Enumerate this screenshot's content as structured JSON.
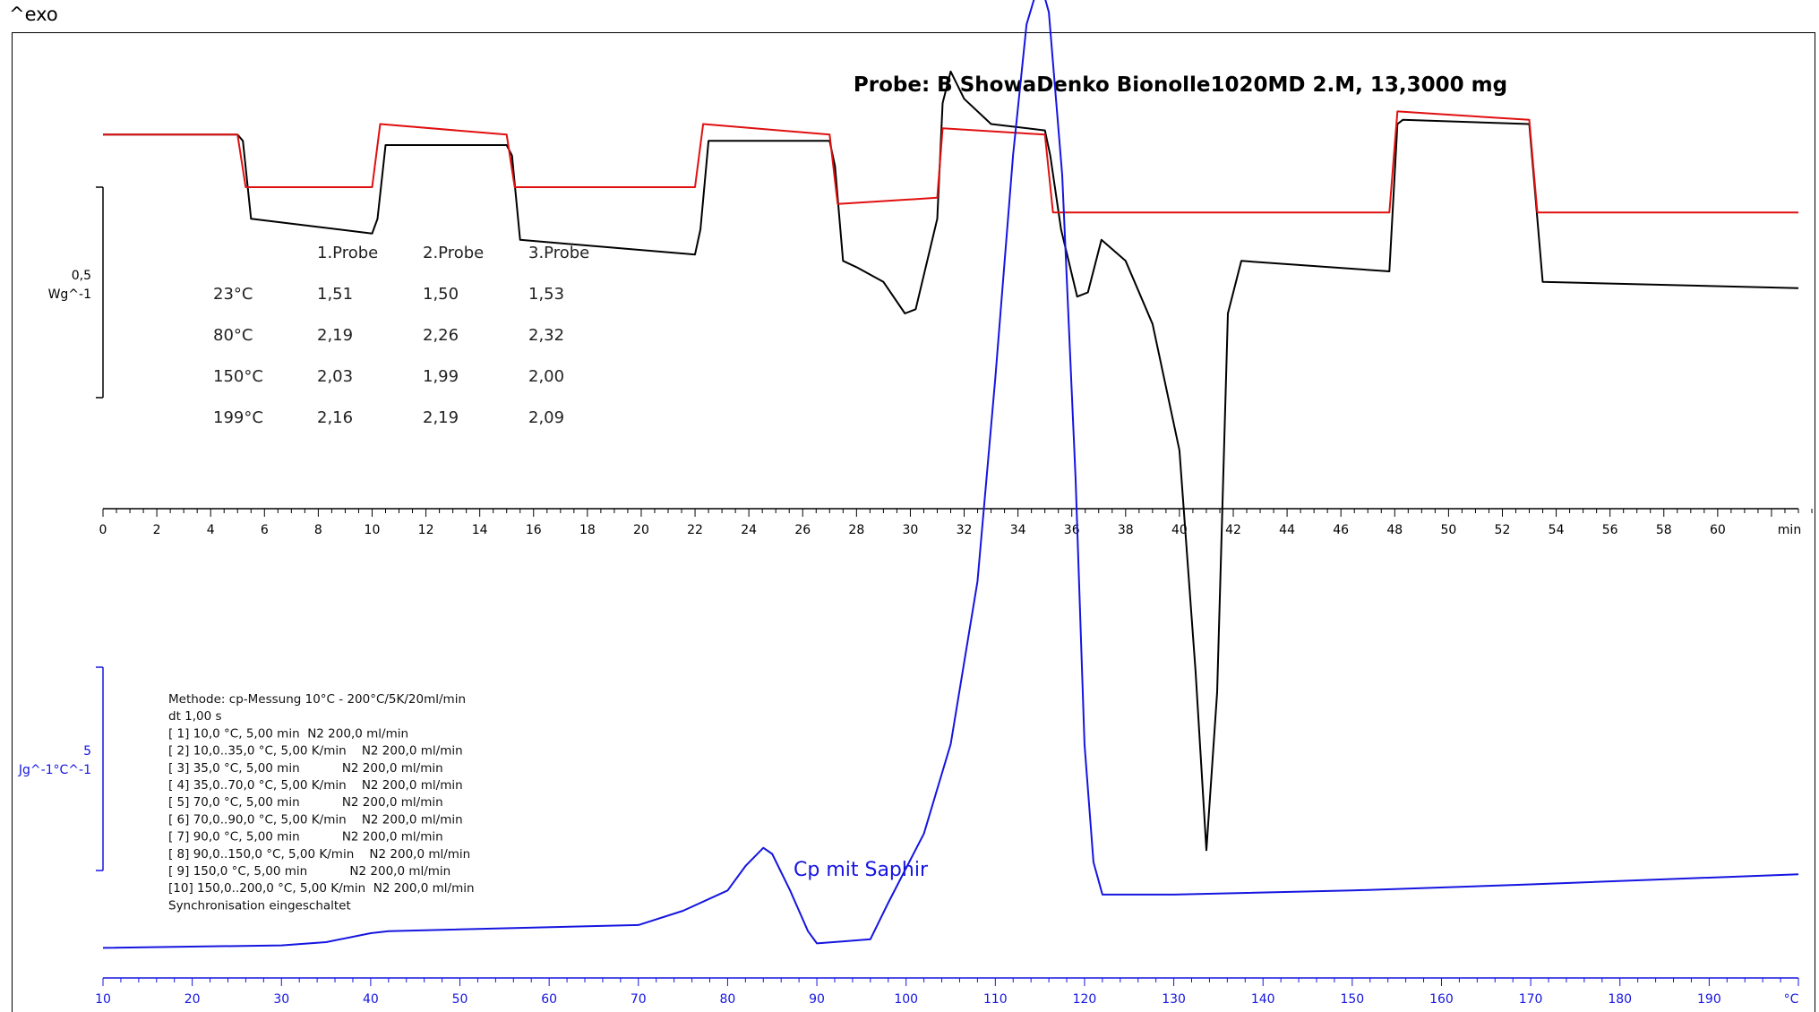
{
  "header": {
    "exo_label": "^exo"
  },
  "chart_data": [
    {
      "type": "line",
      "title": "Probe: B ShowaDenko Bionolle1020MD 2.M, 13,3000 mg",
      "xlabel_unit": "min",
      "xlim": [
        0,
        63
      ],
      "x_ticks": [
        0,
        2,
        4,
        6,
        8,
        10,
        12,
        14,
        16,
        18,
        20,
        22,
        24,
        26,
        28,
        30,
        32,
        34,
        36,
        38,
        40,
        42,
        44,
        46,
        48,
        50,
        52,
        54,
        56,
        58,
        60
      ],
      "y_scale": {
        "value": "0,5",
        "unit": "Wg^-1"
      },
      "series": [
        {
          "color": "#000000",
          "points": [
            [
              0,
              0.05
            ],
            [
              5,
              0.05
            ],
            [
              5.2,
              0.02
            ],
            [
              5.5,
              -0.35
            ],
            [
              10,
              -0.42
            ],
            [
              10.2,
              -0.35
            ],
            [
              10.5,
              0.0
            ],
            [
              15,
              0.0
            ],
            [
              15.2,
              -0.05
            ],
            [
              15.5,
              -0.45
            ],
            [
              22,
              -0.52
            ],
            [
              22.2,
              -0.4
            ],
            [
              22.5,
              0.02
            ],
            [
              27,
              0.02
            ],
            [
              27.2,
              -0.1
            ],
            [
              27.5,
              -0.55
            ],
            [
              28,
              -0.58
            ],
            [
              29,
              -0.65
            ],
            [
              29.8,
              -0.8
            ],
            [
              30.2,
              -0.78
            ],
            [
              31,
              -0.35
            ],
            [
              31.2,
              0.2
            ],
            [
              31.5,
              0.35
            ],
            [
              32,
              0.22
            ],
            [
              33,
              0.1
            ],
            [
              35,
              0.07
            ],
            [
              35.2,
              -0.05
            ],
            [
              35.6,
              -0.4
            ],
            [
              36.2,
              -0.72
            ],
            [
              36.6,
              -0.7
            ],
            [
              37.1,
              -0.45
            ],
            [
              38,
              -0.55
            ],
            [
              39,
              -0.85
            ],
            [
              40,
              -1.45
            ],
            [
              40.6,
              -2.5
            ],
            [
              41,
              -3.35
            ],
            [
              41.4,
              -2.6
            ],
            [
              41.8,
              -0.8
            ],
            [
              42.3,
              -0.55
            ],
            [
              47.8,
              -0.6
            ],
            [
              48.1,
              0.1
            ],
            [
              48.3,
              0.12
            ],
            [
              53,
              0.1
            ],
            [
              53.2,
              -0.2
            ],
            [
              53.5,
              -0.65
            ],
            [
              63,
              -0.68
            ]
          ]
        },
        {
          "color": "#e01010",
          "points": [
            [
              0,
              0.05
            ],
            [
              5,
              0.05
            ],
            [
              5.3,
              -0.2
            ],
            [
              10,
              -0.2
            ],
            [
              10.3,
              0.1
            ],
            [
              15,
              0.05
            ],
            [
              15.3,
              -0.2
            ],
            [
              22,
              -0.2
            ],
            [
              22.3,
              0.1
            ],
            [
              27,
              0.05
            ],
            [
              27.3,
              -0.28
            ],
            [
              31,
              -0.25
            ],
            [
              31.2,
              0.08
            ],
            [
              35,
              0.05
            ],
            [
              35.3,
              -0.32
            ],
            [
              47.8,
              -0.32
            ],
            [
              48.1,
              0.16
            ],
            [
              53,
              0.12
            ],
            [
              53.3,
              -0.32
            ],
            [
              63,
              -0.32
            ]
          ]
        }
      ],
      "table": {
        "headers": [
          "",
          "1.Probe",
          "2.Probe",
          "3.Probe"
        ],
        "rows": [
          [
            "23°C",
            "1,51",
            "1,50",
            "1,53"
          ],
          [
            "80°C",
            "2,19",
            "2,26",
            "2,32"
          ],
          [
            "150°C",
            "2,03",
            "1,99",
            "2,00"
          ],
          [
            "199°C",
            "2,16",
            "2,19",
            "2,09"
          ]
        ]
      }
    },
    {
      "type": "line",
      "xlabel_unit": "°C",
      "xlim": [
        10,
        200
      ],
      "x_ticks": [
        10,
        20,
        30,
        40,
        50,
        60,
        70,
        80,
        90,
        100,
        110,
        120,
        130,
        140,
        150,
        160,
        170,
        180,
        190
      ],
      "y_scale": {
        "value": "5",
        "unit": "Jg^-1°C^-1"
      },
      "series": [
        {
          "name": "Cp mit Saphir",
          "color": "#1515e0",
          "points": [
            [
              10,
              1.49
            ],
            [
              30,
              1.55
            ],
            [
              35,
              1.63
            ],
            [
              40,
              1.85
            ],
            [
              42,
              1.9
            ],
            [
              70,
              2.05
            ],
            [
              75,
              2.4
            ],
            [
              80,
              2.9
            ],
            [
              82,
              3.5
            ],
            [
              84,
              3.95
            ],
            [
              85,
              3.8
            ],
            [
              87,
              2.9
            ],
            [
              89,
              1.9
            ],
            [
              90,
              1.6
            ],
            [
              93,
              1.65
            ],
            [
              96,
              1.7
            ],
            [
              98,
              2.6
            ],
            [
              102,
              4.3
            ],
            [
              105,
              6.5
            ],
            [
              108,
              10.5
            ],
            [
              110,
              15.5
            ],
            [
              112,
              21.0
            ],
            [
              113.5,
              24.2
            ],
            [
              115,
              25.3
            ],
            [
              116,
              24.5
            ],
            [
              117.5,
              20.5
            ],
            [
              119,
              13.0
            ],
            [
              120,
              6.5
            ],
            [
              121,
              3.6
            ],
            [
              122,
              2.8
            ],
            [
              130,
              2.8
            ],
            [
              150,
              2.9
            ],
            [
              170,
              3.05
            ],
            [
              200,
              3.3
            ]
          ]
        }
      ],
      "methode": {
        "lines": [
          "Methode: cp-Messung 10°C - 200°C/5K/20ml/min",
          "dt 1,00 s",
          "[ 1] 10,0 °C, 5,00 min  N2 200,0 ml/min",
          "[ 2] 10,0..35,0 °C, 5,00 K/min    N2 200,0 ml/min",
          "[ 3] 35,0 °C, 5,00 min           N2 200,0 ml/min",
          "[ 4] 35,0..70,0 °C, 5,00 K/min    N2 200,0 ml/min",
          "[ 5] 70,0 °C, 5,00 min           N2 200,0 ml/min",
          "[ 6] 70,0..90,0 °C, 5,00 K/min    N2 200,0 ml/min",
          "[ 7] 90,0 °C, 5,00 min           N2 200,0 ml/min",
          "[ 8] 90,0..150,0 °C, 5,00 K/min    N2 200,0 ml/min",
          "[ 9] 150,0 °C, 5,00 min           N2 200,0 ml/min",
          "[10] 150,0..200,0 °C, 5,00 K/min  N2 200,0 ml/min",
          "Synchronisation eingeschaltet"
        ]
      },
      "annotation": "Cp mit Saphir"
    }
  ]
}
